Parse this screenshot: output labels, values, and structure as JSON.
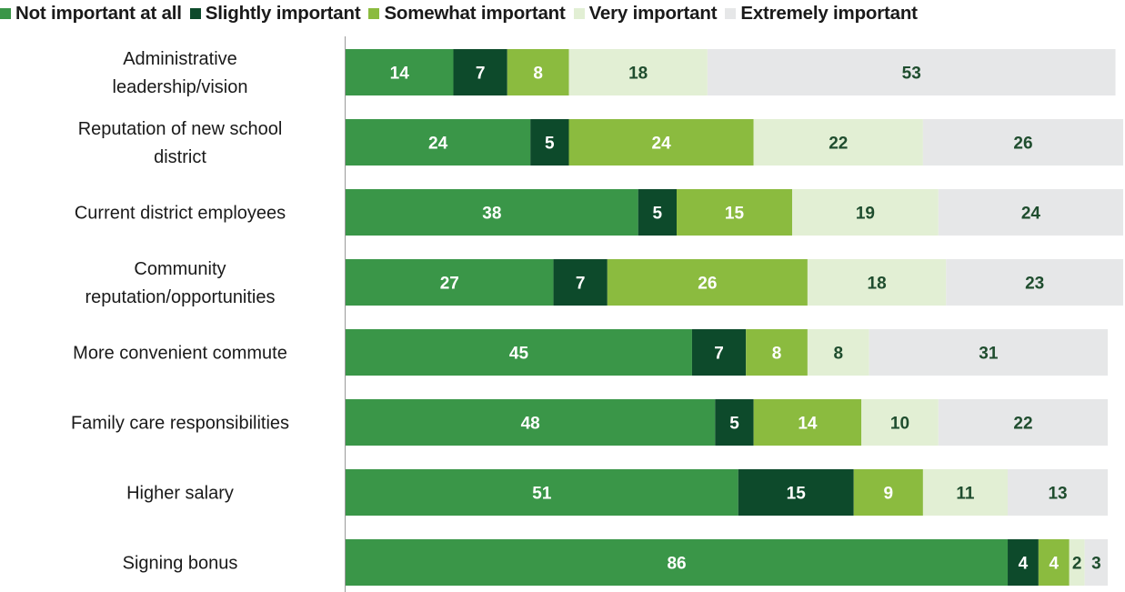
{
  "chart_data": {
    "type": "bar",
    "orientation": "horizontal",
    "stacked": true,
    "categories": [
      "Administrative leadership/vision",
      "Reputation of new school district",
      "Current district employees",
      "Community reputation/opportunities",
      "More convenient commute",
      "Family care responsibilities",
      "Higher salary",
      "Signing bonus"
    ],
    "category_lines": [
      [
        "Administrative",
        "leadership/vision"
      ],
      [
        "Reputation of new school",
        "district"
      ],
      [
        "Current district employees"
      ],
      [
        "Community",
        "reputation/opportunities"
      ],
      [
        "More convenient commute"
      ],
      [
        "Family care responsibilities"
      ],
      [
        "Higher salary"
      ],
      [
        "Signing bonus"
      ]
    ],
    "series": [
      {
        "name": "Not important at all",
        "color": "#3a9648",
        "label_color": "#ffffff",
        "values": [
          14,
          24,
          38,
          27,
          45,
          48,
          51,
          86
        ]
      },
      {
        "name": "Slightly important",
        "color": "#0d4a2b",
        "label_color": "#ffffff",
        "values": [
          7,
          5,
          5,
          7,
          7,
          5,
          15,
          4
        ]
      },
      {
        "name": "Somewhat important",
        "color": "#8bbb3f",
        "label_color": "#ffffff",
        "values": [
          8,
          24,
          15,
          26,
          8,
          14,
          9,
          4
        ]
      },
      {
        "name": "Very important",
        "color": "#e2efd4",
        "label_color": "#1f4d2e",
        "values": [
          18,
          22,
          19,
          18,
          8,
          10,
          11,
          2
        ]
      },
      {
        "name": "Extremely important",
        "color": "#e6e7e8",
        "label_color": "#1f4d2e",
        "values": [
          53,
          26,
          24,
          23,
          31,
          22,
          13,
          3
        ]
      }
    ],
    "legend_position": "top",
    "grid": false
  }
}
